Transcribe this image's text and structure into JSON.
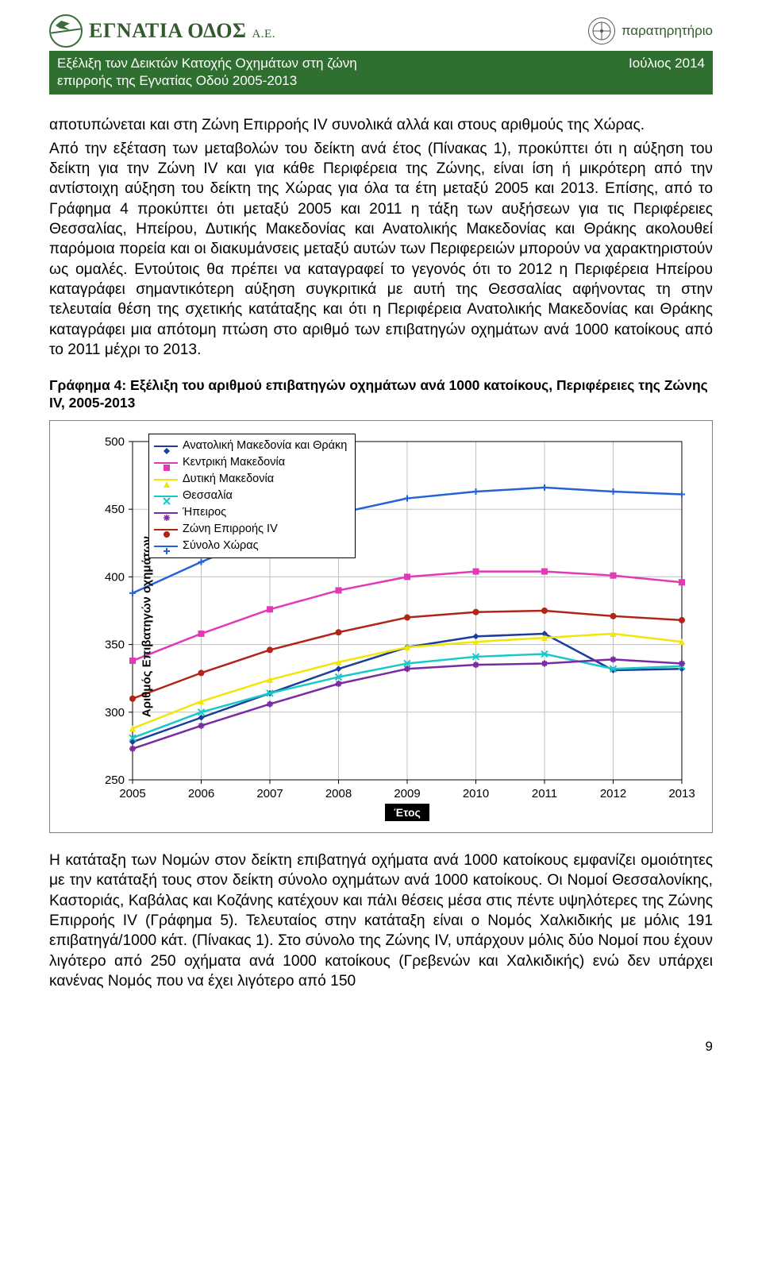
{
  "header": {
    "logo_text": "ΕΓΝΑΤΙΑ ΟΔΟΣ",
    "logo_suffix": "Α.Ε.",
    "observatory": "παρατηρητήριο",
    "band_title_line1": "Εξέλιξη των Δεικτών Κατοχής Οχημάτων στη ζώνη",
    "band_title_line2": "επιρροής της Εγνατίας Οδού 2005-2013",
    "band_date": "Ιούλιος 2014"
  },
  "paragraph1": "αποτυπώνεται και στη Ζώνη Επιρροής IV συνολικά αλλά και στους αριθμούς της Χώρας.",
  "paragraph2": "Από την εξέταση των μεταβολών του δείκτη ανά έτος (Πίνακας 1), προκύπτει ότι η αύξηση του δείκτη για την Ζώνη IV και για κάθε Περιφέρεια της Ζώνης, είναι ίση ή μικρότερη από την αντίστοιχη αύξηση του δείκτη της Χώρας για όλα τα έτη μεταξύ 2005 και 2013. Επίσης, από το Γράφημα 4 προκύπτει ότι μεταξύ 2005 και 2011 η τάξη των αυξήσεων για τις Περιφέρειες Θεσσαλίας, Ηπείρου, Δυτικής Μακεδονίας και Ανατολικής Μακεδονίας και Θράκης ακολουθεί παρόμοια πορεία και οι διακυμάνσεις μεταξύ αυτών των Περιφερειών μπορούν να χαρακτηριστούν ως ομαλές. Εντούτοις θα πρέπει να καταγραφεί το γεγονός ότι το 2012 η Περιφέρεια Ηπείρου καταγράφει σημαντικότερη αύξηση συγκριτικά με αυτή της Θεσσαλίας αφήνοντας τη στην τελευταία θέση της σχετικής κατάταξης και ότι η Περιφέρεια Ανατολικής Μακεδονίας και Θράκης καταγράφει μια απότομη πτώση στο αριθμό των επιβατηγών οχημάτων ανά 1000 κατοίκους από το 2011 μέχρι το 2013.",
  "chart_caption": "Γράφημα 4: Εξέλιξη του αριθμού επιβατηγών οχημάτων ανά 1000 κατοίκους, Περιφέρειες της Ζώνης IV, 2005-2013",
  "chart": {
    "type": "line",
    "y_label": "Αριθμός Επιβατηγών οχημάτων",
    "x_label": "Έτος",
    "ylim": [
      250,
      500
    ],
    "ytick_step": 50,
    "yticks": [
      250,
      300,
      350,
      400,
      450,
      500
    ],
    "x_categories": [
      "2005",
      "2006",
      "2007",
      "2008",
      "2009",
      "2010",
      "2011",
      "2012",
      "2013"
    ],
    "background_color": "#ffffff",
    "grid_color": "#c0c0c0",
    "axis_color": "#000000",
    "line_width": 2.5,
    "marker_size": 8,
    "title_fontsize": 17,
    "tick_fontsize": 15,
    "legend_fontsize": 14,
    "series": [
      {
        "name": "Ανατολική Μακεδονία και Θράκη",
        "color": "#1b3e9c",
        "marker": "diamond",
        "values": [
          278,
          296,
          314,
          332,
          348,
          356,
          358,
          331,
          332
        ]
      },
      {
        "name": "Κεντρική Μακεδονία",
        "color": "#e23ab6",
        "marker": "square",
        "values": [
          338,
          358,
          376,
          390,
          400,
          404,
          404,
          401,
          396
        ]
      },
      {
        "name": "Δυτική Μακεδονία",
        "color": "#f2e607",
        "marker": "triangle",
        "values": [
          288,
          308,
          324,
          337,
          348,
          352,
          355,
          358,
          352
        ]
      },
      {
        "name": "Θεσσαλία",
        "color": "#19c9c9",
        "marker": "x",
        "values": [
          281,
          300,
          314,
          326,
          336,
          341,
          343,
          332,
          334
        ]
      },
      {
        "name": "Ήπειρος",
        "color": "#7a2aa3",
        "marker": "star",
        "values": [
          273,
          290,
          306,
          321,
          332,
          335,
          336,
          339,
          336
        ]
      },
      {
        "name": "Ζώνη Επιρροής IV",
        "color": "#b22416",
        "marker": "circle",
        "values": [
          310,
          329,
          346,
          359,
          370,
          374,
          375,
          371,
          368
        ]
      },
      {
        "name": "Σύνολο Χώρας",
        "color": "#2362d8",
        "marker": "plus",
        "values": [
          388,
          411,
          432,
          447,
          458,
          463,
          466,
          463,
          461
        ]
      }
    ]
  },
  "paragraph3": "Η κατάταξη των Νομών στον δείκτη επιβατηγά οχήματα ανά 1000 κατοίκους εμφανίζει ομοιότητες με την κατάταξή τους στον δείκτη σύνολο οχημάτων ανά 1000 κατοίκους. Οι Νομοί Θεσσαλονίκης, Καστοριάς, Καβάλας και Κοζάνης κατέχουν και πάλι θέσεις μέσα στις πέντε υψηλότερες της Ζώνης Επιρροής IV (Γράφημα 5). Τελευταίος στην κατάταξη είναι ο Νομός Χαλκιδικής με μόλις 191 επιβατηγά/1000 κάτ. (Πίνακας 1). Στο σύνολο της Ζώνης IV, υπάρχουν μόλις δύο Νομοί που έχουν λιγότερο από 250 οχήματα ανά 1000 κατοίκους (Γρεβενών και Χαλκιδικής) ενώ δεν υπάρχει κανένας Νομός που να έχει λιγότερο από 150",
  "page_number": "9"
}
